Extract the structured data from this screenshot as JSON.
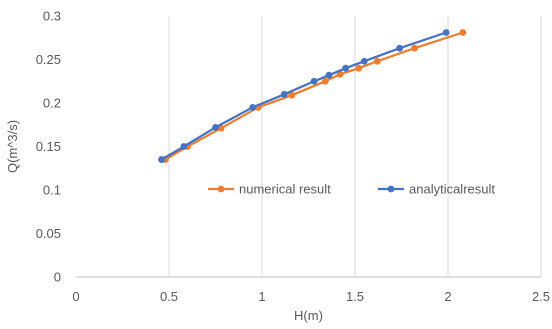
{
  "chart_data": {
    "type": "line",
    "title": "",
    "xlabel": "H(m)",
    "ylabel": "Q(m^3/s)",
    "xlim": [
      0,
      2.5
    ],
    "ylim": [
      0,
      0.3
    ],
    "xticks": [
      "0",
      "0.5",
      "1",
      "1.5",
      "2",
      "2.5"
    ],
    "yticks": [
      "0",
      "0.05",
      "0.1",
      "0.15",
      "0.2",
      "0.25",
      "0.3"
    ],
    "grid": "vertical",
    "legend_position": "center-right",
    "series": [
      {
        "name": "numerical result",
        "color": "#ED7D31",
        "x": [
          0.48,
          0.6,
          0.78,
          0.98,
          1.16,
          1.34,
          1.42,
          1.52,
          1.62,
          1.82,
          2.08
        ],
        "y": [
          0.135,
          0.15,
          0.171,
          0.195,
          0.209,
          0.225,
          0.233,
          0.24,
          0.248,
          0.263,
          0.281
        ]
      },
      {
        "name": "analyticalresult",
        "color": "#4472C4",
        "x": [
          0.46,
          0.58,
          0.75,
          0.95,
          1.12,
          1.28,
          1.36,
          1.45,
          1.55,
          1.74,
          1.99
        ],
        "y": [
          0.135,
          0.15,
          0.172,
          0.195,
          0.21,
          0.225,
          0.232,
          0.24,
          0.248,
          0.263,
          0.281
        ]
      }
    ]
  }
}
